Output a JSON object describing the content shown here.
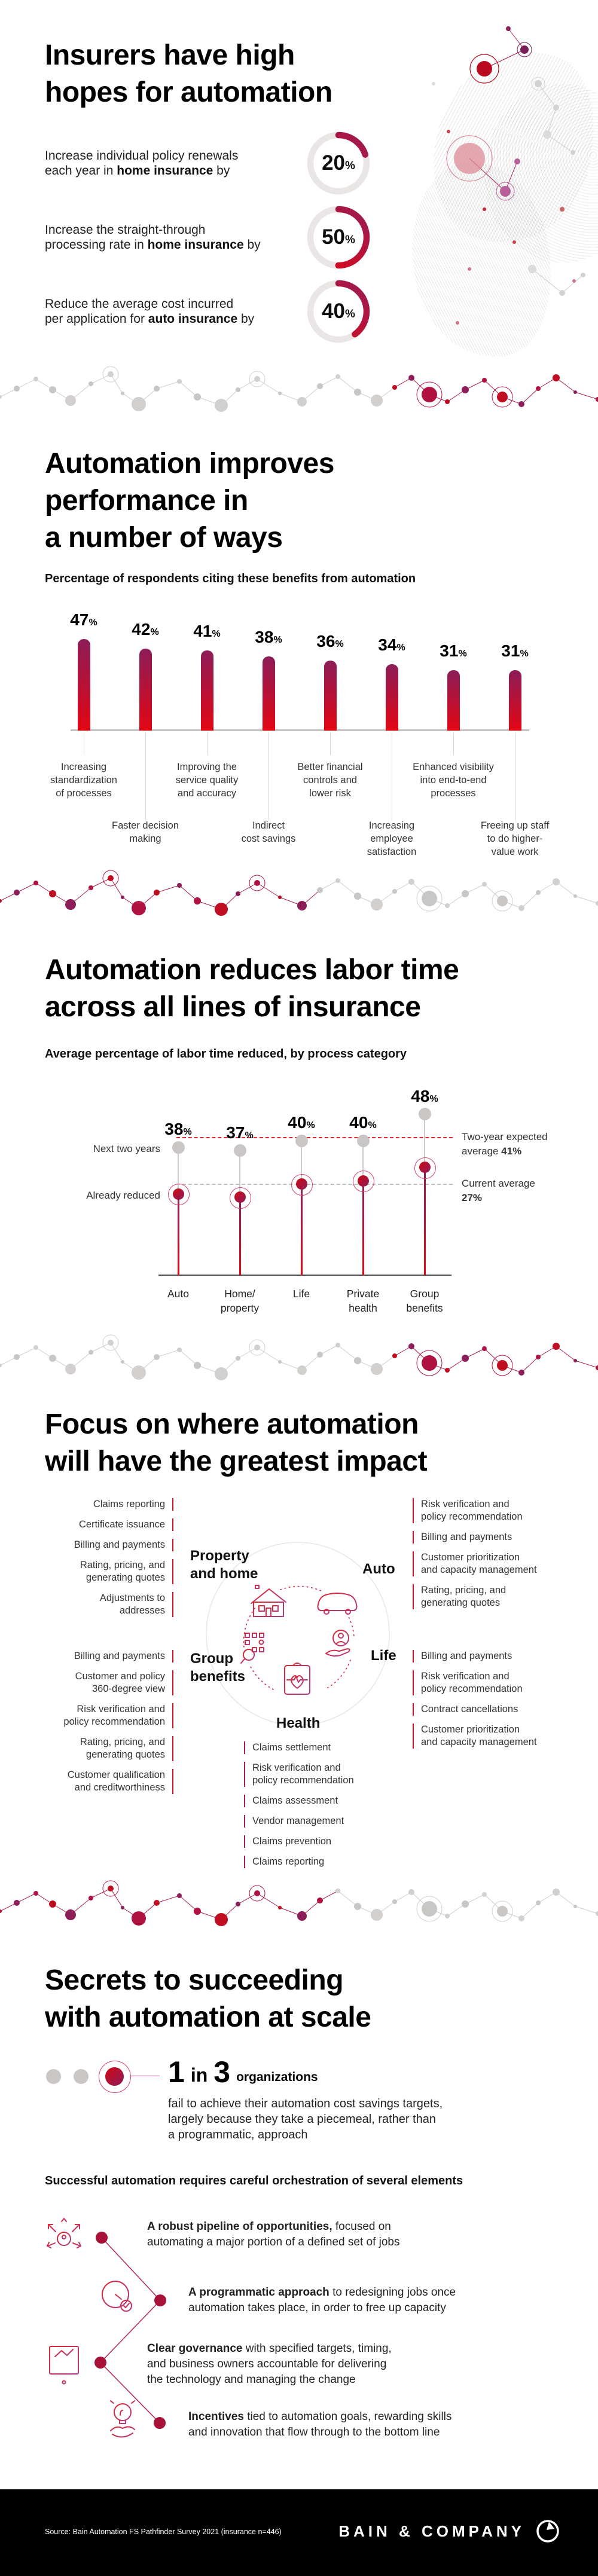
{
  "section1": {
    "title_lines": [
      "Insurers have high",
      "hopes for automation"
    ],
    "stats": [
      {
        "line1": "Increase individual policy renewals",
        "line2_pre": "each year in ",
        "line2_bold": "home insurance",
        "line2_post": " by",
        "value": "20",
        "unit": "%"
      },
      {
        "line1": "Increase the straight-through",
        "line2_pre": "processing rate in ",
        "line2_bold": "home insurance",
        "line2_post": " by",
        "value": "50",
        "unit": "%"
      },
      {
        "line1": "Reduce the average cost incurred",
        "line2_pre": "per application for ",
        "line2_bold": "auto insurance",
        "line2_post": " by",
        "value": "40",
        "unit": "%"
      }
    ]
  },
  "section2": {
    "title_lines": [
      "Automation improves",
      "performance in",
      "a number of ways"
    ],
    "subtitle": "Percentage of respondents citing these benefits from automation"
  },
  "section3": {
    "title_lines": [
      "Automation reduces labor time",
      "across all lines of insurance"
    ],
    "subtitle": "Average percentage of labor time reduced, by process category",
    "row_label_top": "Next two years",
    "row_label_bottom": "Already reduced",
    "ref1_line1": "Two-year expected",
    "ref1_line2_pre": "average ",
    "ref1_value": "41%",
    "ref2_line1": "Current average",
    "ref2_value": "27%"
  },
  "section4": {
    "title_lines": [
      "Focus on where automation",
      "will have the greatest impact"
    ],
    "hub_labels": {
      "property": "Property\nand home",
      "auto": "Auto",
      "group": "Group\nbenefits",
      "life": "Life",
      "health": "Health"
    },
    "lists": {
      "property": [
        "Claims reporting",
        "Certificate issuance",
        "Billing and payments",
        "Rating, pricing, and\ngenerating quotes",
        "Adjustments to\naddresses"
      ],
      "auto": [
        "Risk verification and\npolicy recommendation",
        "Billing and payments",
        "Customer prioritization\nand capacity management",
        "Rating, pricing, and\ngenerating quotes"
      ],
      "group": [
        "Billing and payments",
        "Customer and policy\n360-degree view",
        "Risk verification and\npolicy recommendation",
        "Rating, pricing, and\ngenerating quotes",
        "Customer qualification\nand creditworthiness"
      ],
      "life": [
        "Billing and payments",
        "Risk verification and\npolicy recommendation",
        "Contract cancellations",
        "Customer prioritization\nand capacity management"
      ],
      "health": [
        "Claims settlement",
        "Risk verification and\npolicy recommendation",
        "Claims assessment",
        "Vendor management",
        "Claims prevention",
        "Claims reporting"
      ]
    }
  },
  "section5": {
    "title_lines": [
      "Secrets to succeeding",
      "with automation at scale"
    ],
    "stat": {
      "big1": "1",
      "mid": "in",
      "big2": "3",
      "suffix": "organizations",
      "body": "fail to achieve their automation cost savings targets,\nlargely because they take a piecemeal, rather than\na programmatic, approach"
    },
    "intro": "Successful automation requires careful orchestration of several elements",
    "items": [
      {
        "bold": "A robust pipeline of opportunities,",
        "rest": " focused on\nautomating a major portion of a defined set of jobs",
        "icon": "key-opportunities-icon"
      },
      {
        "bold": "A programmatic approach",
        "rest": " to redesigning jobs once\nautomation takes place, in order to free up capacity",
        "icon": "gauge-check-icon"
      },
      {
        "bold": "Clear governance",
        "rest": " with specified targets, timing,\nand business owners accountable for delivering\nthe technology and managing the change",
        "icon": "governance-board-icon"
      },
      {
        "bold": "Incentives",
        "rest": " tied to automation goals, rewarding skills\nand innovation that flow through to the bottom line",
        "icon": "incentive-bulb-icon"
      }
    ]
  },
  "footer": {
    "source": "Source: Bain Automation FS Pathfinder Survey 2021 (insurance n=446)",
    "brand": "BAIN & COMPANY"
  },
  "colors": {
    "red": "#e30613",
    "magenta": "#8c1d59",
    "crimson": "#cf1024",
    "track": "#e9e6e5",
    "gray_node": "#cfcdcc",
    "footer_bg": "#000000"
  },
  "chart_data": [
    {
      "type": "pie",
      "subtype": "donut-gauges",
      "title": "Insurers have high hopes for automation",
      "gauges": [
        {
          "label": "Increase individual policy renewals each year in home insurance by",
          "value": 20
        },
        {
          "label": "Increase the straight-through processing rate in home insurance by",
          "value": 50
        },
        {
          "label": "Reduce the average cost incurred per application for auto insurance by",
          "value": 40
        }
      ],
      "unit": "%"
    },
    {
      "type": "bar",
      "title": "Percentage of respondents citing these benefits from automation",
      "categories": [
        "Increasing\nstandardization\nof processes",
        "Faster decision\nmaking",
        "Improving the\nservice quality\nand accuracy",
        "Indirect\ncost savings",
        "Better financial\ncontrols and\nlower risk",
        "Increasing\nemployee\nsatisfaction",
        "Enhanced visibility\ninto end-to-end\nprocesses",
        "Freeing up staff\nto do higher-\nvalue work"
      ],
      "values": [
        47,
        42,
        41,
        38,
        36,
        34,
        31,
        31
      ],
      "unit": "%",
      "xlabel": "",
      "ylabel": "",
      "ylim": [
        0,
        50
      ],
      "grid": false,
      "legend": false
    },
    {
      "type": "scatter",
      "subtype": "lollipop",
      "title": "Average percentage of labor time reduced, by process category",
      "categories": [
        "Auto",
        "Home/\nproperty",
        "Life",
        "Private\nhealth",
        "Group\nbenefits"
      ],
      "series": [
        {
          "name": "Next two years",
          "values": [
            38,
            37,
            40,
            40,
            48
          ],
          "labeled": true
        },
        {
          "name": "Already reduced",
          "values": [
            24,
            23,
            27,
            28,
            32
          ],
          "labeled": false,
          "note": "estimated from plot"
        }
      ],
      "unit": "%",
      "reference_lines": [
        {
          "label": "Two-year expected average 41%",
          "value": 41,
          "style": "dashed-red"
        },
        {
          "label": "Current average 27%",
          "value": 27,
          "style": "dashed-gray"
        }
      ],
      "ylim": [
        0,
        54
      ],
      "grid": false,
      "legend_position": "left-annotations"
    }
  ]
}
